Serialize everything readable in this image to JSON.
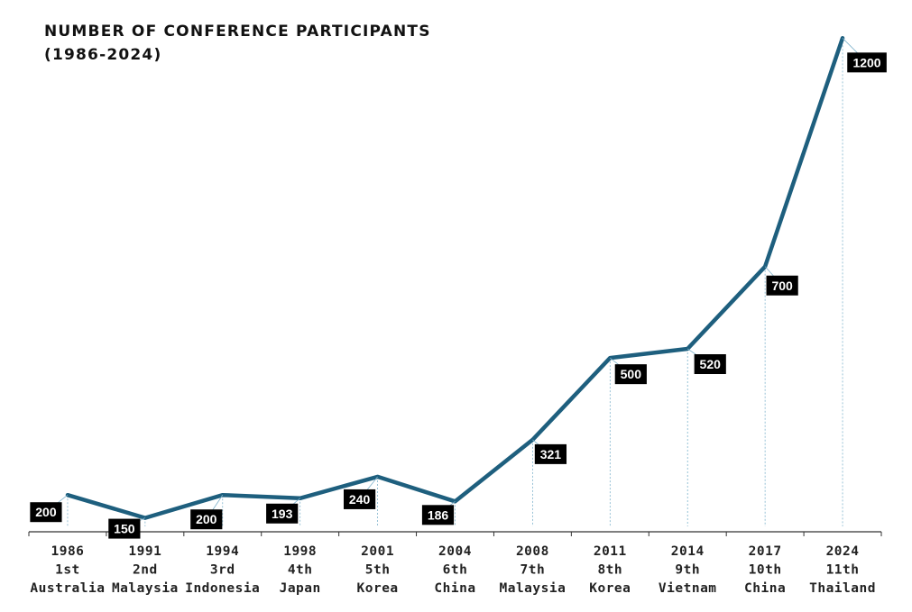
{
  "chart_data": {
    "type": "line",
    "title": "NUMBER OF CONFERENCE PARTICIPANTS",
    "subtitle": "(1986-2024)",
    "xlabel": "",
    "ylabel": "",
    "ylim": [
      0,
      1250
    ],
    "grid": false,
    "legend": "none",
    "categories": [
      {
        "year": "1986",
        "edition": "1st",
        "country": "Australia"
      },
      {
        "year": "1991",
        "edition": "2nd",
        "country": "Malaysia"
      },
      {
        "year": "1994",
        "edition": "3rd",
        "country": "Indonesia"
      },
      {
        "year": "1998",
        "edition": "4th",
        "country": "Japan"
      },
      {
        "year": "2001",
        "edition": "5th",
        "country": "Korea"
      },
      {
        "year": "2004",
        "edition": "6th",
        "country": "China"
      },
      {
        "year": "2008",
        "edition": "7th",
        "country": "Malaysia"
      },
      {
        "year": "2011",
        "edition": "8th",
        "country": "Korea"
      },
      {
        "year": "2014",
        "edition": "9th",
        "country": "Vietnam"
      },
      {
        "year": "2017",
        "edition": "10th",
        "country": "China"
      },
      {
        "year": "2024",
        "edition": "11th",
        "country": "Thailand"
      }
    ],
    "series": [
      {
        "values": [
          200,
          150,
          200,
          193,
          240,
          186,
          321,
          500,
          520,
          700,
          1200
        ]
      }
    ],
    "colors": {
      "line": "#1e5f7e",
      "label_bg": "#000000",
      "label_text": "#ffffff",
      "axis": "#333333",
      "leader": "#7fb3cc"
    }
  }
}
